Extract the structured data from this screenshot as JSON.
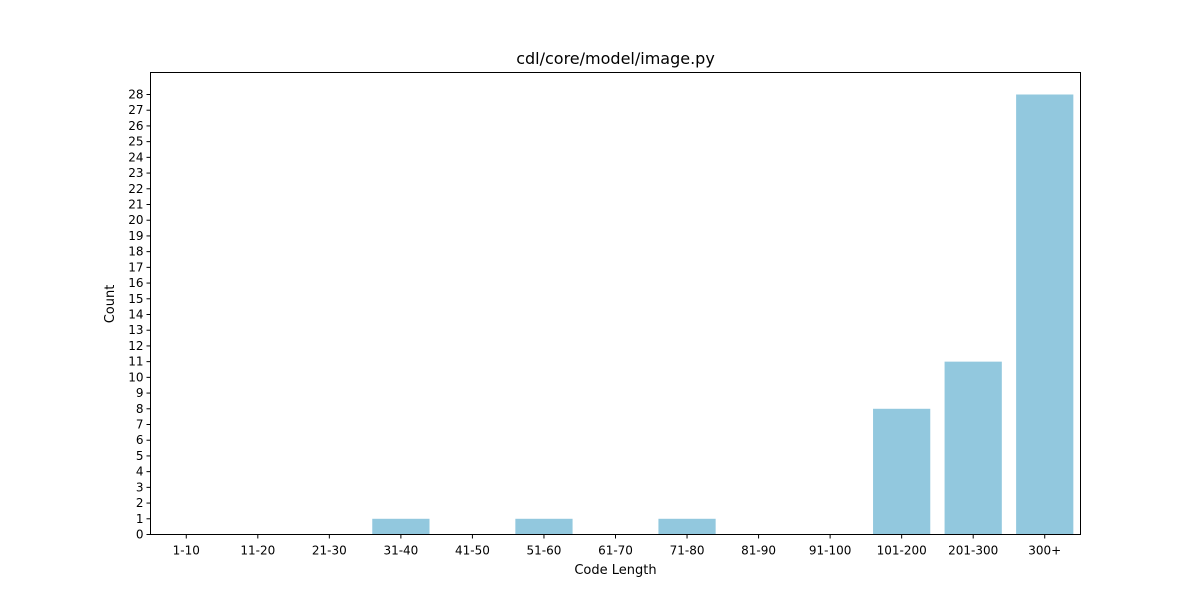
{
  "chart_data": {
    "type": "bar",
    "title": "cdl/core/model/image.py",
    "xlabel": "Code Length",
    "ylabel": "Count",
    "categories": [
      "1-10",
      "11-20",
      "21-30",
      "31-40",
      "41-50",
      "51-60",
      "61-70",
      "71-80",
      "81-90",
      "91-100",
      "101-200",
      "201-300",
      "300+"
    ],
    "values": [
      0,
      0,
      0,
      1,
      0,
      1,
      0,
      1,
      0,
      0,
      8,
      11,
      28
    ],
    "ylim": [
      0,
      29.4
    ],
    "yticks": [
      0,
      1,
      2,
      3,
      4,
      5,
      6,
      7,
      8,
      9,
      10,
      11,
      12,
      13,
      14,
      15,
      16,
      17,
      18,
      19,
      20,
      21,
      22,
      23,
      24,
      25,
      26,
      27,
      28
    ],
    "bar_color": "#92c8de",
    "grid": false,
    "legend": "none"
  }
}
